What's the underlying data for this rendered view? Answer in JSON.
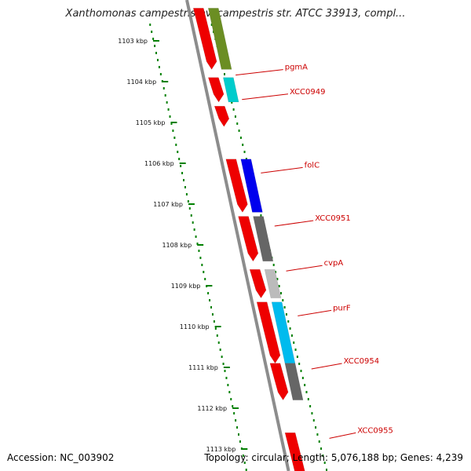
{
  "title": "Xanthomonas campestris pv. campestris str. ATCC 33913, compl...",
  "footer": {
    "accession": "Accession: NC_003902",
    "summary": "Topology: circular; Length: 5,076,188 bp; Genes: 4,239"
  },
  "ruler": [
    {
      "label": "1103 kbp",
      "pos": 1103
    },
    {
      "label": "1104 kbp",
      "pos": 1104
    },
    {
      "label": "1105 kbp",
      "pos": 1105
    },
    {
      "label": "1106 kbp",
      "pos": 1106
    },
    {
      "label": "1107 kbp",
      "pos": 1107
    },
    {
      "label": "1108 kbp",
      "pos": 1108
    },
    {
      "label": "1109 kbp",
      "pos": 1109
    },
    {
      "label": "1110 kbp",
      "pos": 1110
    },
    {
      "label": "1111 kbp",
      "pos": 1111
    },
    {
      "label": "1112 kbp",
      "pos": 1112
    },
    {
      "label": "1113 kbp",
      "pos": 1113
    }
  ],
  "features": [
    {
      "track": "cds",
      "start": 1102.2,
      "end": 1103.7,
      "color": "#ee0000"
    },
    {
      "track": "gene",
      "start": 1102.2,
      "end": 1103.7,
      "color": "#6b8e23"
    },
    {
      "track": "cds",
      "start": 1103.9,
      "end": 1104.5,
      "color": "#ee0000"
    },
    {
      "track": "gene",
      "start": 1103.9,
      "end": 1104.5,
      "color": "#00cccc"
    },
    {
      "track": "cds",
      "start": 1104.6,
      "end": 1105.1,
      "color": "#ee0000"
    },
    {
      "track": "cds",
      "start": 1105.9,
      "end": 1107.2,
      "color": "#ee0000"
    },
    {
      "track": "gene",
      "start": 1105.9,
      "end": 1107.2,
      "color": "#0000ee"
    },
    {
      "track": "cds",
      "start": 1107.3,
      "end": 1108.4,
      "color": "#ee0000"
    },
    {
      "track": "gene",
      "start": 1107.3,
      "end": 1108.4,
      "color": "#666666"
    },
    {
      "track": "cds",
      "start": 1108.6,
      "end": 1109.3,
      "color": "#ee0000"
    },
    {
      "track": "gene",
      "start": 1108.6,
      "end": 1109.3,
      "color": "#bbbbbb"
    },
    {
      "track": "cds",
      "start": 1109.4,
      "end": 1110.9,
      "color": "#ee0000"
    },
    {
      "track": "gene",
      "start": 1109.4,
      "end": 1110.9,
      "color": "#00bbee"
    },
    {
      "track": "cds",
      "start": 1110.9,
      "end": 1111.8,
      "color": "#ee0000"
    },
    {
      "track": "gene",
      "start": 1110.9,
      "end": 1111.8,
      "color": "#666666"
    },
    {
      "track": "cds",
      "start": 1112.6,
      "end": 1114.0,
      "color": "#ee0000"
    }
  ],
  "gene_labels": [
    {
      "text": "pgmA",
      "pos": 1103.8
    },
    {
      "text": "XCC0949",
      "pos": 1104.4
    },
    {
      "text": "folC",
      "pos": 1106.2
    },
    {
      "text": "XCC0951",
      "pos": 1107.5
    },
    {
      "text": "cvpA",
      "pos": 1108.6
    },
    {
      "text": "purF",
      "pos": 1109.7
    },
    {
      "text": "XCC0954",
      "pos": 1111.0
    },
    {
      "text": "XCC0955",
      "pos": 1112.7
    }
  ],
  "colors": {
    "backbone": "#8c8c8c",
    "ruler": "#008000",
    "label": "#cc0000"
  }
}
